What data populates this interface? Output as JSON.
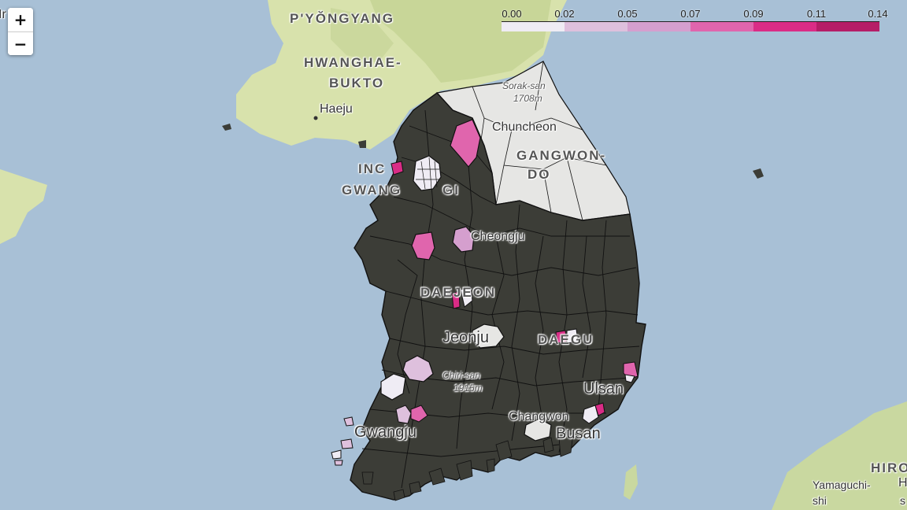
{
  "zoom": {
    "in_label": "+",
    "out_label": "−"
  },
  "legend": {
    "ticks": [
      "0.00",
      "0.02",
      "0.05",
      "0.07",
      "0.09",
      "0.11",
      "0.14"
    ],
    "colors": [
      "#efecf4",
      "#dec0dd",
      "#d59fce",
      "#e065ad",
      "#da2c86",
      "#b51d67"
    ]
  },
  "labels": {
    "pyongyang": "P'YŎNGYANG",
    "hwanghae_1": "HWANGHAE-",
    "hwanghae_2": "BUKTO",
    "haeju": "Haeju",
    "incheon_1": "INC",
    "incheon_2": "GWANG",
    "incheon_3": "GI",
    "sorak_1": "Sorak-san",
    "sorak_2": "1708m",
    "chuncheon": "Chuncheon",
    "gangwon_1": "GANGWON-",
    "gangwon_2": "DO",
    "cheongju": "Cheongju",
    "daejeon": "DAEJEON",
    "jeonju": "Jeonju",
    "daegu": "DAEGU",
    "chiri_1": "Chiri-san",
    "chiri_2": "1915m",
    "ulsan": "Ulsan",
    "changwon": "Changwon",
    "busan": "Busan",
    "gwangju": "Gwangju",
    "hiro": "HIRO",
    "yamaguchi_1": "Yamaguchi-",
    "yamaguchi_2": "shi",
    "edge_left": "Ir",
    "edge_right_1": "H",
    "edge_right_2": "s"
  },
  "colors": {
    "water": "#a8c0d6",
    "land_north": "#d3dfa6",
    "region_dark": "#3c3d37",
    "region_border": "#111111"
  }
}
